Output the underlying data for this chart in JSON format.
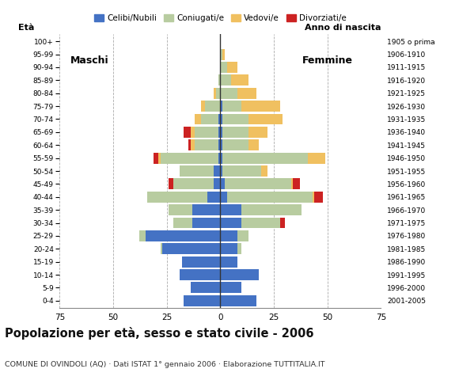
{
  "age_groups": [
    "0-4",
    "5-9",
    "10-14",
    "15-19",
    "20-24",
    "25-29",
    "30-34",
    "35-39",
    "40-44",
    "45-49",
    "50-54",
    "55-59",
    "60-64",
    "65-69",
    "70-74",
    "75-79",
    "80-84",
    "85-89",
    "90-94",
    "95-99",
    "100+"
  ],
  "birth_years": [
    "2001-2005",
    "1996-2000",
    "1991-1995",
    "1986-1990",
    "1981-1985",
    "1976-1980",
    "1971-1975",
    "1966-1970",
    "1961-1965",
    "1956-1960",
    "1951-1955",
    "1946-1950",
    "1941-1945",
    "1936-1940",
    "1931-1935",
    "1926-1930",
    "1921-1925",
    "1916-1920",
    "1911-1915",
    "1906-1910",
    "1905 o prima"
  ],
  "males": {
    "celibe": [
      17,
      14,
      19,
      18,
      27,
      35,
      13,
      13,
      6,
      3,
      3,
      1,
      1,
      1,
      1,
      0,
      0,
      0,
      0,
      0,
      0
    ],
    "coniugato": [
      0,
      0,
      0,
      0,
      1,
      3,
      9,
      11,
      28,
      19,
      16,
      27,
      11,
      11,
      8,
      7,
      2,
      1,
      0,
      0,
      0
    ],
    "vedovo": [
      0,
      0,
      0,
      0,
      0,
      0,
      0,
      0,
      0,
      0,
      0,
      1,
      2,
      2,
      3,
      2,
      1,
      0,
      0,
      0,
      0
    ],
    "divorziato": [
      0,
      0,
      0,
      0,
      0,
      0,
      0,
      0,
      0,
      2,
      0,
      2,
      1,
      3,
      0,
      0,
      0,
      0,
      0,
      0,
      0
    ]
  },
  "females": {
    "nubile": [
      17,
      10,
      18,
      8,
      8,
      8,
      10,
      10,
      3,
      2,
      1,
      1,
      1,
      1,
      1,
      1,
      0,
      0,
      0,
      0,
      0
    ],
    "coniugata": [
      0,
      0,
      0,
      0,
      2,
      5,
      18,
      28,
      40,
      31,
      18,
      40,
      12,
      12,
      12,
      9,
      8,
      5,
      3,
      1,
      0
    ],
    "vedova": [
      0,
      0,
      0,
      0,
      0,
      0,
      0,
      0,
      1,
      1,
      3,
      8,
      5,
      9,
      16,
      18,
      9,
      8,
      5,
      1,
      0
    ],
    "divorziata": [
      0,
      0,
      0,
      0,
      0,
      0,
      2,
      0,
      4,
      3,
      0,
      0,
      0,
      0,
      0,
      0,
      0,
      0,
      0,
      0,
      0
    ]
  },
  "colors": {
    "celibe": "#4472c4",
    "coniugato": "#b8cca0",
    "vedovo": "#f0c060",
    "divorziato": "#cc2222"
  },
  "xlim": 75,
  "title": "Popolazione per età, sesso e stato civile - 2006",
  "subtitle": "COMUNE DI OVINDOLI (AQ) · Dati ISTAT 1° gennaio 2006 · Elaborazione TUTTITALIA.IT",
  "ylabel_left": "Età",
  "ylabel_right": "Anno di nascita",
  "label_maschi": "Maschi",
  "label_femmine": "Femmine",
  "legend_labels": [
    "Celibi/Nubili",
    "Coniugati/e",
    "Vedovi/e",
    "Divorziati/e"
  ],
  "bg_color": "#ffffff",
  "grid_color": "#aaaaaa"
}
